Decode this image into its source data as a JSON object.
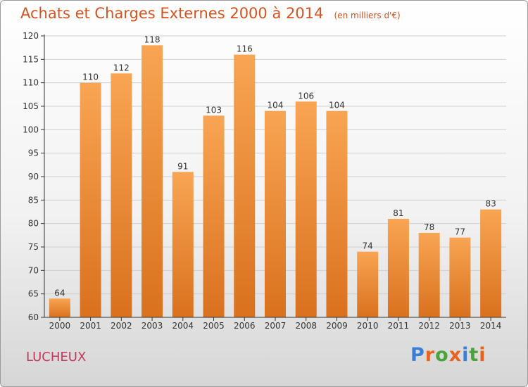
{
  "title": "Achats et Charges Externes 2000 à 2014",
  "unit": "(en milliers d'€)",
  "location": "LUCHEUX",
  "logo": {
    "text": "Proxiti",
    "colors": [
      "#3a7fd5",
      "#e8641e",
      "#4aa33b",
      "#e8641e",
      "#3a7fd5",
      "#4aa33b",
      "#e8641e"
    ]
  },
  "colors": {
    "bar_light": "#f8a553",
    "bar_dark": "#d9711e",
    "axis": "#333333",
    "grid": "#cfcfcf",
    "text": "#333333"
  },
  "chart_data": {
    "type": "bar",
    "categories": [
      "2000",
      "2001",
      "2002",
      "2003",
      "2004",
      "2005",
      "2006",
      "2007",
      "2008",
      "2009",
      "2010",
      "2011",
      "2012",
      "2013",
      "2014"
    ],
    "values": [
      64,
      110,
      112,
      118,
      91,
      103,
      116,
      104,
      106,
      104,
      74,
      81,
      78,
      77,
      83
    ],
    "title": "Achats et Charges Externes 2000 à 2014",
    "xlabel": "",
    "ylabel": "",
    "ylim": [
      60,
      120
    ],
    "yticks": [
      60,
      65,
      70,
      75,
      80,
      85,
      90,
      95,
      100,
      105,
      110,
      115,
      120
    ],
    "grid": true,
    "legend": "none"
  }
}
